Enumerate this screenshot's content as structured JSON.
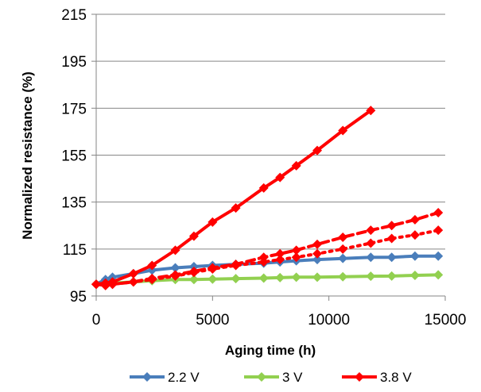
{
  "chart_data": {
    "type": "line",
    "title": "",
    "xlabel": "Aging time (h)",
    "ylabel": "Normalized resistance (%)",
    "xlim": [
      0,
      15000
    ],
    "ylim": [
      95,
      215
    ],
    "xticks": [
      0,
      5000,
      10000,
      15000
    ],
    "yticks": [
      95,
      115,
      135,
      155,
      175,
      195,
      215
    ],
    "grid": "horizontal",
    "legend_position": "bottom",
    "series": [
      {
        "name": "2.2 V",
        "color": "#4a7ebb",
        "style": "solid",
        "marker": "diamond",
        "x": [
          0,
          400,
          700,
          1600,
          2400,
          3400,
          4200,
          5000,
          6000,
          7200,
          7900,
          8600,
          9500,
          10600,
          11800,
          12700,
          13700,
          14700
        ],
        "y": [
          100,
          102,
          103,
          104.5,
          106,
          107,
          107.5,
          108,
          108.5,
          109,
          109.5,
          110,
          110.5,
          111,
          111.5,
          111.5,
          112,
          112
        ]
      },
      {
        "name": "3 V",
        "color": "#92d050",
        "style": "solid",
        "marker": "diamond",
        "x": [
          0,
          400,
          700,
          1600,
          2400,
          3400,
          4200,
          5000,
          6000,
          7200,
          7900,
          8600,
          9500,
          10600,
          11800,
          12700,
          13700,
          14700
        ],
        "y": [
          100,
          100,
          100.5,
          101,
          101.5,
          102,
          102,
          102.2,
          102.4,
          102.6,
          102.8,
          103,
          103,
          103.2,
          103.4,
          103.5,
          103.8,
          104
        ]
      },
      {
        "name": "3.8 V",
        "color": "#ff0000",
        "style": "solid",
        "marker": "diamond",
        "x": [
          0,
          400,
          700,
          1600,
          2400,
          3400,
          4200,
          5000,
          6000,
          7200,
          7900,
          8600,
          9500,
          10600,
          11800
        ],
        "y": [
          100,
          100.5,
          101,
          104.5,
          108,
          114.5,
          120.5,
          126.5,
          132.5,
          141,
          145.5,
          150.5,
          157,
          165.5,
          174
        ]
      },
      {
        "name": "",
        "color": "#ff0000",
        "style": "dashed",
        "marker": "diamond",
        "x": [
          0,
          400,
          700,
          1600,
          2400,
          3400,
          4200,
          5000,
          6000,
          7200,
          7900,
          8600,
          9500,
          10600,
          11800,
          12700,
          13700,
          14700
        ],
        "y": [
          100,
          99.5,
          100,
          101,
          102.5,
          104,
          105.5,
          107,
          108.5,
          111.5,
          113,
          114.5,
          117,
          120,
          123,
          125,
          127.5,
          130.5
        ]
      },
      {
        "name": "",
        "color": "#ff0000",
        "style": "dotted",
        "marker": "diamond",
        "x": [
          0,
          400,
          700,
          1600,
          2400,
          3400,
          4200,
          5000,
          6000,
          7200,
          7900,
          8600,
          9500,
          10600,
          11800,
          12700,
          13700,
          14700
        ],
        "y": [
          100,
          99.5,
          100,
          101,
          102,
          103.5,
          105,
          106.5,
          108,
          109.5,
          110.5,
          111.5,
          113,
          115,
          117.5,
          119.5,
          121,
          123
        ]
      }
    ],
    "legend": [
      "2.2 V",
      "3 V",
      "3.8 V"
    ]
  }
}
